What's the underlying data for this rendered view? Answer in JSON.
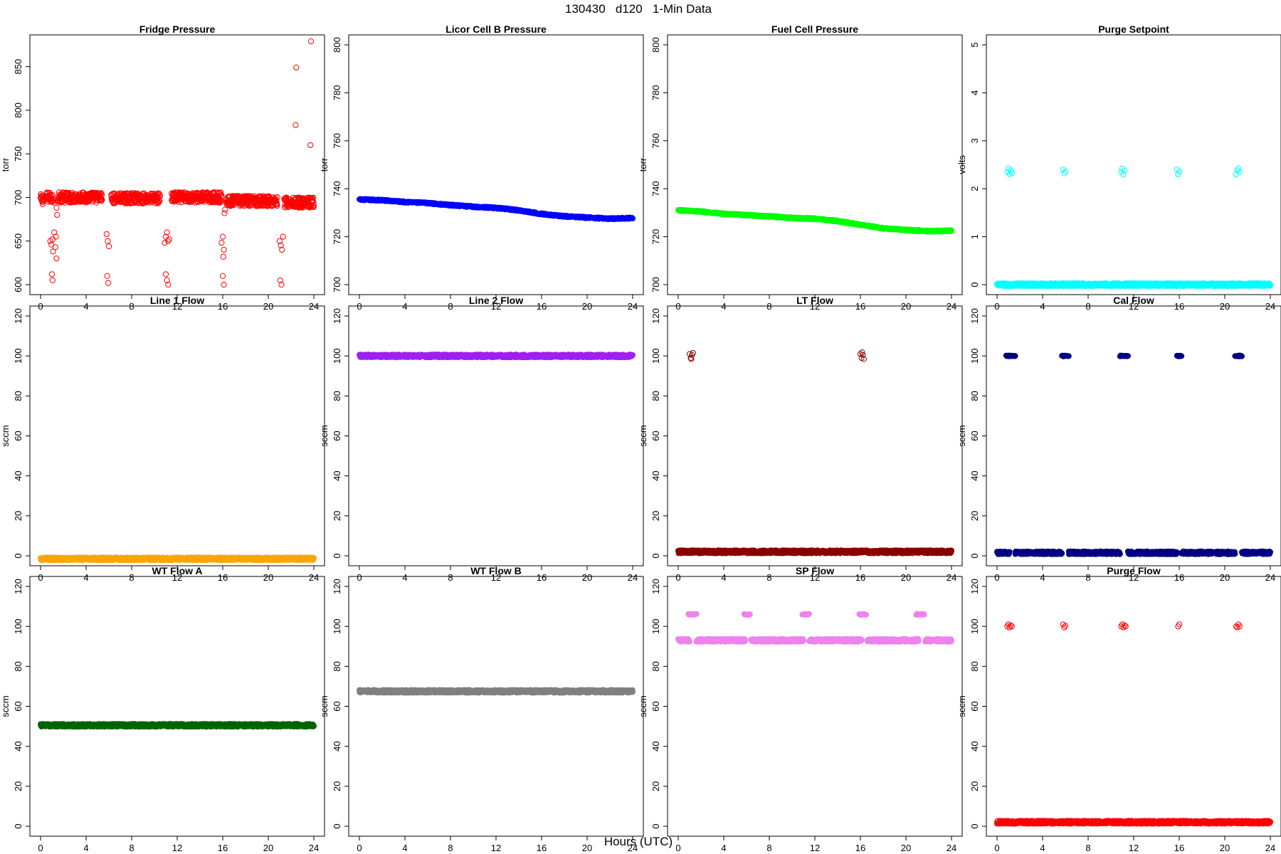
{
  "figure": {
    "title": "130430   d120   1-Min Data",
    "xlabel": "Hours (UTC)"
  },
  "chart_data": [
    {
      "type": "scatter",
      "title": "Fridge Pressure",
      "ylabel": "torr",
      "xlim": [
        0,
        24
      ],
      "ylim": [
        600,
        875
      ],
      "xticks": [
        0,
        4,
        8,
        12,
        16,
        20,
        24
      ],
      "yticks": [
        600,
        650,
        700,
        750,
        800,
        850
      ],
      "color": "#ff0000",
      "marker": "open",
      "series": [
        {
          "name": "",
          "segments": [
            [
              0,
              0.3,
              698
            ],
            [
              0.5,
              1.1,
              700
            ],
            [
              1.5,
              5.4,
              700
            ],
            [
              6.2,
              10.5,
              699
            ],
            [
              11.5,
              15.9,
              700
            ],
            [
              16.3,
              20.8,
              696
            ],
            [
              21.4,
              24,
              694
            ]
          ],
          "points": [
            [
              0.85,
              650
            ],
            [
              0.95,
              646
            ],
            [
              1.05,
              652
            ],
            [
              1.1,
              638
            ],
            [
              1.2,
              660
            ],
            [
              1.3,
              643
            ],
            [
              1.35,
              655
            ],
            [
              1.4,
              630
            ],
            [
              1.0,
              612
            ],
            [
              1.05,
              605
            ],
            [
              5.8,
              658
            ],
            [
              5.9,
              650
            ],
            [
              6.0,
              644
            ],
            [
              5.85,
              610
            ],
            [
              5.95,
              602
            ],
            [
              10.9,
              648
            ],
            [
              11.0,
              655
            ],
            [
              11.1,
              660
            ],
            [
              11.2,
              650
            ],
            [
              11.3,
              652
            ],
            [
              11.0,
              612
            ],
            [
              11.1,
              605
            ],
            [
              11.2,
              600
            ],
            [
              15.9,
              648
            ],
            [
              16.0,
              655
            ],
            [
              16.1,
              640
            ],
            [
              16.05,
              632
            ],
            [
              16.0,
              610
            ],
            [
              16.1,
              600
            ],
            [
              21.0,
              650
            ],
            [
              21.1,
              645
            ],
            [
              21.2,
              640
            ],
            [
              21.3,
              655
            ],
            [
              21.05,
              605
            ],
            [
              21.15,
              600
            ],
            [
              1.4,
              688
            ],
            [
              1.45,
              680
            ],
            [
              16.15,
              682
            ],
            [
              16.2,
              686
            ],
            [
              22.4,
              783
            ],
            [
              22.45,
              849
            ],
            [
              23.7,
              760
            ],
            [
              23.75,
              879
            ]
          ]
        }
      ]
    },
    {
      "type": "scatter",
      "title": "Licor Cell B Pressure",
      "ylabel": "torr",
      "xlim": [
        0,
        24
      ],
      "ylim": [
        700,
        800
      ],
      "xticks": [
        0,
        4,
        8,
        12,
        16,
        20,
        24
      ],
      "yticks": [
        700,
        720,
        740,
        760,
        780,
        800
      ],
      "color": "#0000ff",
      "marker": "filled",
      "series": [
        {
          "name": "",
          "points": [
            [
              0,
              735.5
            ],
            [
              2,
              735.2
            ],
            [
              4,
              734.5
            ],
            [
              6,
              734
            ],
            [
              8,
              733.2
            ],
            [
              10,
              732.5
            ],
            [
              12,
              732
            ],
            [
              14,
              731
            ],
            [
              16,
              729.5
            ],
            [
              18,
              728.5
            ],
            [
              20,
              728
            ],
            [
              22,
              727.5
            ],
            [
              24,
              727.8
            ]
          ]
        }
      ]
    },
    {
      "type": "scatter",
      "title": "Fuel Cell Pressure",
      "ylabel": "torr",
      "xlim": [
        0,
        24
      ],
      "ylim": [
        700,
        800
      ],
      "xticks": [
        0,
        4,
        8,
        12,
        16,
        20,
        24
      ],
      "yticks": [
        700,
        720,
        740,
        760,
        780,
        800
      ],
      "color": "#00ff00",
      "marker": "filled",
      "series": [
        {
          "name": "",
          "points": [
            [
              0,
              731
            ],
            [
              2,
              730.5
            ],
            [
              4,
              729.5
            ],
            [
              6,
              729
            ],
            [
              8,
              728.5
            ],
            [
              10,
              727.8
            ],
            [
              12,
              727.5
            ],
            [
              14,
              726.5
            ],
            [
              16,
              725
            ],
            [
              18,
              723.5
            ],
            [
              20,
              722.8
            ],
            [
              22,
              722.3
            ],
            [
              24,
              722.5
            ]
          ]
        }
      ]
    },
    {
      "type": "scatter",
      "title": "Purge Setpoint",
      "ylabel": "volts",
      "xlim": [
        0,
        24
      ],
      "ylim": [
        0,
        5
      ],
      "xticks": [
        0,
        4,
        8,
        12,
        16,
        20,
        24
      ],
      "yticks": [
        0,
        1,
        2,
        3,
        4,
        5
      ],
      "color": "#00ffff",
      "marker": "open",
      "series": [
        {
          "name": "",
          "segments": [
            [
              0,
              24,
              0
            ]
          ],
          "points": [
            [
              0.9,
              2.35
            ],
            [
              1.0,
              2.42
            ],
            [
              1.1,
              2.3
            ],
            [
              1.2,
              2.38
            ],
            [
              1.3,
              2.33
            ],
            [
              5.8,
              2.4
            ],
            [
              5.9,
              2.32
            ],
            [
              6.0,
              2.36
            ],
            [
              10.9,
              2.35
            ],
            [
              11.0,
              2.42
            ],
            [
              11.1,
              2.3
            ],
            [
              11.2,
              2.38
            ],
            [
              15.8,
              2.4
            ],
            [
              15.9,
              2.3
            ],
            [
              16.0,
              2.36
            ],
            [
              21.0,
              2.3
            ],
            [
              21.1,
              2.38
            ],
            [
              21.2,
              2.42
            ],
            [
              21.3,
              2.35
            ]
          ]
        }
      ]
    },
    {
      "type": "scatter",
      "title": "Line 1 Flow",
      "ylabel": "sccm",
      "xlim": [
        0,
        24
      ],
      "ylim": [
        0,
        120
      ],
      "xticks": [
        0,
        4,
        8,
        12,
        16,
        20,
        24
      ],
      "yticks": [
        0,
        20,
        40,
        60,
        80,
        100,
        120
      ],
      "color": "#ffa500",
      "marker": "filled",
      "series": [
        {
          "name": "",
          "segments": [
            [
              0,
              24,
              -1.5
            ]
          ]
        }
      ]
    },
    {
      "type": "scatter",
      "title": "Line 2 Flow",
      "ylabel": "sccm",
      "xlim": [
        0,
        24
      ],
      "ylim": [
        0,
        120
      ],
      "xticks": [
        0,
        4,
        8,
        12,
        16,
        20,
        24
      ],
      "yticks": [
        0,
        20,
        40,
        60,
        80,
        100,
        120
      ],
      "color": "#a020f0",
      "marker": "filled",
      "series": [
        {
          "name": "",
          "segments": [
            [
              0,
              24,
              100
            ]
          ]
        }
      ]
    },
    {
      "type": "scatter",
      "title": "LT Flow",
      "ylabel": "sccm",
      "xlim": [
        0,
        24
      ],
      "ylim": [
        0,
        120
      ],
      "xticks": [
        0,
        4,
        8,
        12,
        16,
        20,
        24
      ],
      "yticks": [
        0,
        20,
        40,
        60,
        80,
        100,
        120
      ],
      "color": "#8b0000",
      "marker": "open",
      "series": [
        {
          "name": "",
          "segments": [
            [
              0,
              24,
              2
            ]
          ],
          "points": [
            [
              1.0,
              101
            ],
            [
              1.1,
              99
            ],
            [
              1.2,
              100.5
            ],
            [
              1.3,
              101.5
            ],
            [
              1.15,
              98.5
            ],
            [
              16.0,
              101
            ],
            [
              16.1,
              99
            ],
            [
              16.2,
              100.5
            ],
            [
              16.3,
              98.5
            ],
            [
              16.15,
              101.8
            ]
          ]
        }
      ]
    },
    {
      "type": "scatter",
      "title": "Cal Flow",
      "ylabel": "sccm",
      "xlim": [
        0,
        24
      ],
      "ylim": [
        0,
        120
      ],
      "xticks": [
        0,
        4,
        8,
        12,
        16,
        20,
        24
      ],
      "yticks": [
        0,
        20,
        40,
        60,
        80,
        100,
        120
      ],
      "color": "#000080",
      "marker": "filled",
      "series": [
        {
          "name": "",
          "segments": [
            [
              0,
              1.1,
              1.5
            ],
            [
              1.6,
              5.7,
              1.5
            ],
            [
              6.3,
              10.8,
              1.5
            ],
            [
              11.5,
              15.8,
              1.5
            ],
            [
              16.2,
              20.9,
              1.5
            ],
            [
              21.5,
              24,
              1.5
            ]
          ],
          "bands": [
            [
              0.8,
              1.6,
              100
            ],
            [
              5.7,
              6.3,
              100
            ],
            [
              10.8,
              11.5,
              100
            ],
            [
              15.8,
              16.2,
              100
            ],
            [
              20.9,
              21.5,
              100
            ]
          ]
        }
      ]
    },
    {
      "type": "scatter",
      "title": "WT Flow A",
      "ylabel": "sccm",
      "xlim": [
        0,
        24
      ],
      "ylim": [
        0,
        120
      ],
      "xticks": [
        0,
        4,
        8,
        12,
        16,
        20,
        24
      ],
      "yticks": [
        0,
        20,
        40,
        60,
        80,
        100,
        120
      ],
      "color": "#006400",
      "marker": "filled",
      "series": [
        {
          "name": "",
          "segments": [
            [
              0,
              24,
              50.5
            ]
          ]
        }
      ]
    },
    {
      "type": "scatter",
      "title": "WT Flow B",
      "ylabel": "sccm",
      "xlim": [
        0,
        24
      ],
      "ylim": [
        0,
        120
      ],
      "xticks": [
        0,
        4,
        8,
        12,
        16,
        20,
        24
      ],
      "yticks": [
        0,
        20,
        40,
        60,
        80,
        100,
        120
      ],
      "color": "#808080",
      "marker": "filled",
      "series": [
        {
          "name": "",
          "segments": [
            [
              0,
              24,
              67.5
            ]
          ]
        }
      ]
    },
    {
      "type": "scatter",
      "title": "SP Flow",
      "ylabel": "sccm",
      "xlim": [
        0,
        24
      ],
      "ylim": [
        0,
        120
      ],
      "xticks": [
        0,
        4,
        8,
        12,
        16,
        20,
        24
      ],
      "yticks": [
        0,
        20,
        40,
        60,
        80,
        100,
        120
      ],
      "color": "#ee82ee",
      "marker": "filled",
      "series": [
        {
          "name": "",
          "segments": [
            [
              0,
              1.0,
              93
            ],
            [
              1.6,
              5.9,
              93
            ],
            [
              6.4,
              11.0,
              93
            ],
            [
              11.5,
              16.1,
              93
            ],
            [
              16.6,
              21.1,
              93
            ],
            [
              21.7,
              24,
              93
            ]
          ],
          "bands": [
            [
              0.9,
              1.6,
              106
            ],
            [
              5.8,
              6.3,
              106
            ],
            [
              10.9,
              11.5,
              106
            ],
            [
              15.9,
              16.5,
              106
            ],
            [
              20.9,
              21.6,
              106
            ]
          ]
        }
      ]
    },
    {
      "type": "scatter",
      "title": "Purge Flow",
      "ylabel": "sccm",
      "xlim": [
        0,
        24
      ],
      "ylim": [
        0,
        120
      ],
      "xticks": [
        0,
        4,
        8,
        12,
        16,
        20,
        24
      ],
      "yticks": [
        0,
        20,
        40,
        60,
        80,
        100,
        120
      ],
      "color": "#ff0000",
      "marker": "open",
      "series": [
        {
          "name": "",
          "segments": [
            [
              0,
              24,
              2
            ]
          ],
          "points": [
            [
              0.9,
              100
            ],
            [
              1.0,
              101
            ],
            [
              1.1,
              99.5
            ],
            [
              1.2,
              100.5
            ],
            [
              1.3,
              100
            ],
            [
              5.8,
              101
            ],
            [
              5.9,
              99.5
            ],
            [
              6.0,
              100.3
            ],
            [
              10.9,
              100
            ],
            [
              11.0,
              101
            ],
            [
              11.1,
              99.5
            ],
            [
              11.2,
              100.5
            ],
            [
              11.3,
              100
            ],
            [
              15.9,
              100
            ],
            [
              16.0,
              101
            ],
            [
              21.0,
              100
            ],
            [
              21.1,
              99.5
            ],
            [
              21.2,
              101
            ],
            [
              21.3,
              100
            ]
          ]
        }
      ]
    }
  ]
}
